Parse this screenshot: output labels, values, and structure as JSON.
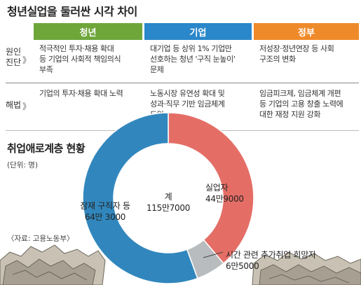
{
  "title": "청년실업을 둘러싼 시각 차이",
  "table": {
    "headers": [
      {
        "label": "청년",
        "color": "#6ea63a"
      },
      {
        "label": "기업",
        "color": "#2a87c9"
      },
      {
        "label": "정부",
        "color": "#ef8a2a"
      }
    ],
    "rows": [
      {
        "label_line1": "원인",
        "label_line2": "진단",
        "chevron": "》",
        "cells": [
          [
            "적극적인 투자·채용 확대",
            "등 기업의 사회적 책임의식",
            "부족"
          ],
          [
            "대기업 등 상위 1% 기업만",
            "선호하는 청년 '구직 눈높이'",
            "문제"
          ],
          [
            "저성장·정년연장 등 사회",
            "구조의 변화"
          ]
        ]
      },
      {
        "label_line1": "해법",
        "label_line2": "",
        "chevron": "》",
        "cells": [
          [
            "기업의 투자·채용 확대 노력"
          ],
          [
            "노동시장 유연성 확대 및",
            "성과·직무 기반 임금체계",
            "도입"
          ],
          [
            "임금피크제, 임금체계 개편",
            "등 기업의 고용 창출 노력에",
            "대한 재정 지원 강화"
          ]
        ]
      }
    ]
  },
  "chart_title": "취업애로계층 현황",
  "unit_note": "(단위: 명)",
  "source": "〈자료: 고용노동부〉",
  "chart_data": {
    "type": "pie",
    "variant": "donut",
    "title": "취업애로계층 현황",
    "unit": "명",
    "total_label": "계",
    "total_value": "115만7000",
    "total": 1157000,
    "slices": [
      {
        "name": "실업자",
        "value": 449000,
        "label": "44만9000",
        "color": "#e46e66"
      },
      {
        "name": "시간 관련 추가취업 희망자",
        "value": 65000,
        "label": "6만5000",
        "color": "#b9bcbe"
      },
      {
        "name": "잠재 구직자 등",
        "value": 643000,
        "label": "64만 3000",
        "color": "#3187bd"
      }
    ]
  }
}
